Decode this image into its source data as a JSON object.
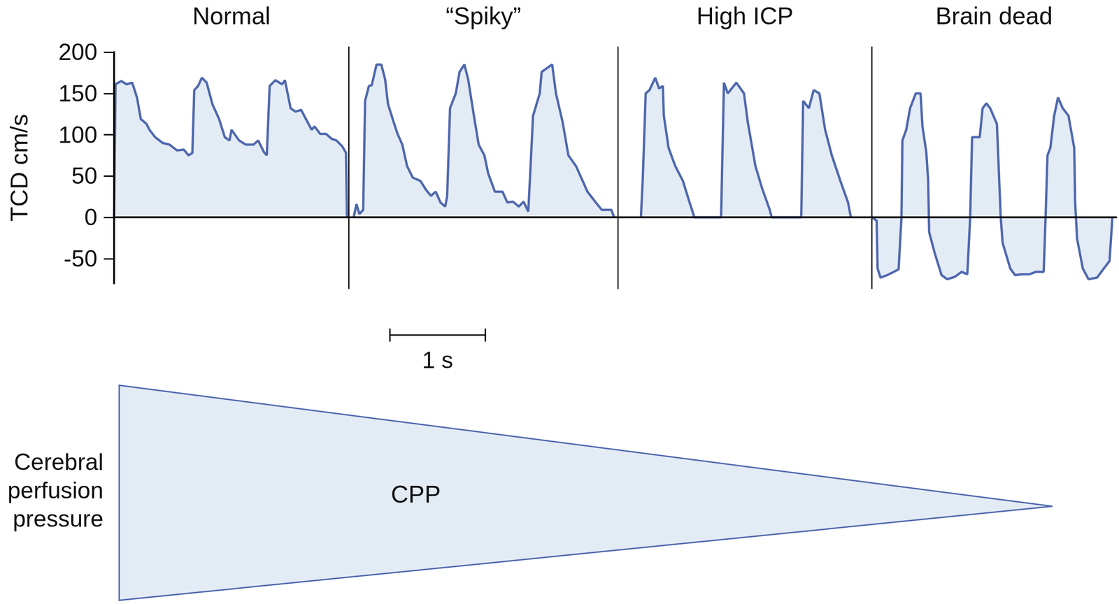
{
  "chart_data": {
    "type": "line",
    "y_label": "TCD cm/s",
    "xlim": [
      0,
      10.5
    ],
    "ylim": [
      -80,
      200
    ],
    "yticks": [
      -50,
      0,
      50,
      100,
      150,
      200
    ],
    "tick_labels": "y",
    "grid": false,
    "color": "#4f68ae",
    "dividers": [
      2.46,
      5.28,
      7.94
    ],
    "scale_bar": {
      "length": 1,
      "label": "1 s"
    },
    "series": [
      {
        "name": "Normal",
        "x": [
          0,
          0.015,
          0.075,
          0.13,
          0.19,
          0.24,
          0.28,
          0.34,
          0.37,
          0.43,
          0.51,
          0.58,
          0.66,
          0.73,
          0.78,
          0.82,
          0.84,
          0.88,
          0.92,
          0.97,
          1.03,
          1.1,
          1.16,
          1.21,
          1.23,
          1.31,
          1.38,
          1.46,
          1.51,
          1.57,
          1.6,
          1.63,
          1.69,
          1.76,
          1.79,
          1.85,
          1.9,
          1.96,
          2.01,
          2.07,
          2.1,
          2.16,
          2.22,
          2.28,
          2.33,
          2.39,
          2.43,
          2.44
        ],
        "values": [
          0,
          161,
          165,
          161,
          163,
          145,
          119,
          113,
          106,
          97,
          90,
          88,
          81,
          82,
          75,
          78,
          154,
          159,
          169,
          163,
          137,
          119,
          97,
          93,
          106,
          93,
          88,
          88,
          93,
          79,
          75,
          159,
          166,
          161,
          166,
          132,
          128,
          130,
          119,
          106,
          110,
          101,
          101,
          95,
          93,
          86,
          78,
          0
        ]
      },
      {
        "name": "“Spiky”",
        "x": [
          2.51,
          2.54,
          2.57,
          2.61,
          2.63,
          2.67,
          2.7,
          2.75,
          2.8,
          2.84,
          2.87,
          2.93,
          2.97,
          3.02,
          3.07,
          3.13,
          3.21,
          3.27,
          3.32,
          3.37,
          3.42,
          3.47,
          3.49,
          3.52,
          3.58,
          3.62,
          3.67,
          3.71,
          3.77,
          3.82,
          3.88,
          3.92,
          3.99,
          4.07,
          4.12,
          4.18,
          4.24,
          4.29,
          4.34,
          4.39,
          4.46,
          4.48,
          4.54,
          4.59,
          4.63,
          4.7,
          4.76,
          4.84,
          4.91,
          4.96,
          5.04,
          5.11,
          5.21,
          5.24
        ],
        "values": [
          0,
          16,
          4,
          9,
          141,
          159,
          160,
          185,
          185,
          167,
          137,
          115,
          101,
          88,
          62,
          48,
          44,
          33,
          26,
          31,
          18,
          13,
          26,
          132,
          150,
          176,
          185,
          167,
          123,
          88,
          75,
          53,
          31,
          31,
          18,
          19,
          13,
          19,
          7,
          123,
          150,
          176,
          181,
          185,
          150,
          115,
          75,
          62,
          44,
          31,
          19,
          9,
          9,
          0
        ]
      },
      {
        "name": "High ICP",
        "x": [
          5.52,
          5.54,
          5.57,
          5.61,
          5.67,
          5.71,
          5.75,
          5.76,
          5.81,
          5.88,
          5.96,
          6.03,
          6.08,
          6.36,
          6.39,
          6.43,
          6.52,
          6.6,
          6.64,
          6.72,
          6.79,
          6.87,
          6.89,
          7.2,
          7.22,
          7.28,
          7.33,
          7.39,
          7.45,
          7.52,
          7.61,
          7.69,
          7.72
        ],
        "values": [
          0,
          48,
          150,
          154,
          169,
          156,
          159,
          123,
          84,
          62,
          44,
          18,
          0,
          0,
          163,
          150,
          163,
          150,
          115,
          62,
          35,
          9,
          0,
          0,
          141,
          132,
          154,
          150,
          106,
          75,
          44,
          18,
          0
        ]
      },
      {
        "name": "Brain dead",
        "x": [
          7.94,
          7.99,
          8.0,
          8.03,
          8.1,
          8.17,
          8.22,
          8.25,
          8.26,
          8.3,
          8.34,
          8.4,
          8.45,
          8.47,
          8.51,
          8.53,
          8.54,
          8.6,
          8.67,
          8.73,
          8.81,
          8.88,
          8.94,
          8.97,
          8.99,
          9.07,
          9.1,
          9.14,
          9.18,
          9.25,
          9.29,
          9.31,
          9.39,
          9.44,
          9.51,
          9.59,
          9.66,
          9.74,
          9.76,
          9.78,
          9.81,
          9.85,
          9.89,
          9.94,
          10.0,
          10.06,
          10.07,
          10.09,
          10.15,
          10.21,
          10.3,
          10.37,
          10.43,
          10.46
        ],
        "values": [
          0,
          -4,
          -62,
          -73,
          -70,
          -66,
          -63,
          0,
          93,
          106,
          132,
          150,
          150,
          110,
          79,
          44,
          -18,
          -44,
          -70,
          -75,
          -72,
          -66,
          -69,
          0,
          97,
          97,
          132,
          138,
          132,
          113,
          0,
          -31,
          -62,
          -70,
          -69,
          -69,
          -66,
          -66,
          0,
          75,
          84,
          123,
          145,
          132,
          123,
          84,
          18,
          -26,
          -62,
          -75,
          -73,
          -62,
          -53,
          0
        ]
      }
    ]
  },
  "cpp_wedge": {
    "label": "CPP",
    "title": [
      "Cerebral",
      "perfusion",
      "pressure"
    ]
  }
}
